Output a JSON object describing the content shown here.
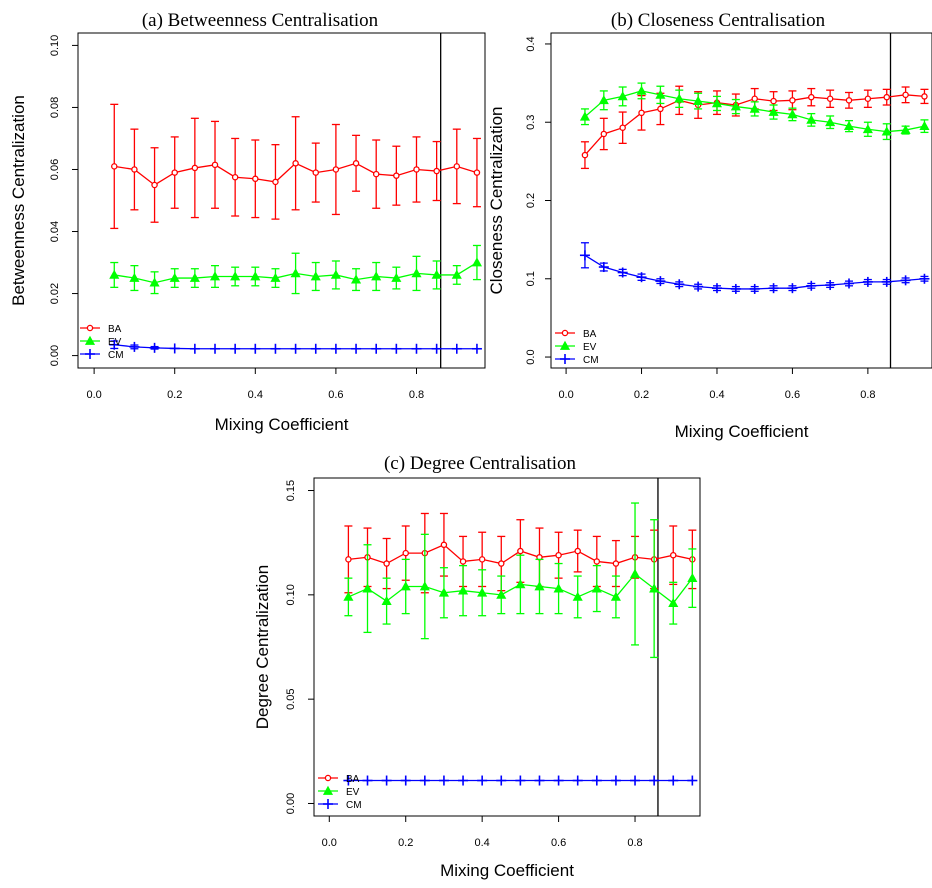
{
  "chart_data": [
    {
      "type": "line",
      "title": "(a)   Betweenness Centralisation",
      "xlabel": "Mixing Coefficient",
      "ylabel": "Betweenness Centralization",
      "xlim": [
        -0.04,
        0.97
      ],
      "ylim": [
        -0.004,
        0.104
      ],
      "xticks": [
        0.0,
        0.2,
        0.4,
        0.6,
        0.8
      ],
      "xtick_labels": [
        "0.0",
        "0.2",
        "0.4",
        "0.6",
        "0.8"
      ],
      "yticks": [
        0.0,
        0.02,
        0.04,
        0.06,
        0.08,
        0.1
      ],
      "ytick_labels": [
        "0.00",
        "0.02",
        "0.04",
        "0.06",
        "0.08",
        "0.10"
      ],
      "vline": 0.86,
      "legend_position": "bottom-left",
      "x": [
        0.05,
        0.1,
        0.15,
        0.2,
        0.25,
        0.3,
        0.35,
        0.4,
        0.45,
        0.5,
        0.55,
        0.6,
        0.65,
        0.7,
        0.75,
        0.8,
        0.85,
        0.9,
        0.95
      ],
      "series": [
        {
          "name": "BA",
          "color": "#ff0000",
          "marker": "circle",
          "values": [
            0.061,
            0.06,
            0.055,
            0.059,
            0.0605,
            0.0615,
            0.0575,
            0.057,
            0.056,
            0.062,
            0.059,
            0.06,
            0.062,
            0.0585,
            0.058,
            0.06,
            0.0595,
            0.061,
            0.059
          ],
          "errors": [
            0.02,
            0.013,
            0.012,
            0.0115,
            0.016,
            0.014,
            0.0125,
            0.0125,
            0.012,
            0.015,
            0.0095,
            0.0145,
            0.009,
            0.011,
            0.0095,
            0.0105,
            0.0095,
            0.012,
            0.011
          ]
        },
        {
          "name": "EV",
          "color": "#00ff00",
          "marker": "triangle",
          "values": [
            0.026,
            0.025,
            0.0235,
            0.025,
            0.025,
            0.0255,
            0.0255,
            0.0255,
            0.025,
            0.0265,
            0.0255,
            0.026,
            0.0245,
            0.0255,
            0.025,
            0.0265,
            0.026,
            0.026,
            0.03
          ],
          "errors": [
            0.004,
            0.004,
            0.0035,
            0.003,
            0.003,
            0.0035,
            0.003,
            0.003,
            0.003,
            0.0065,
            0.0045,
            0.0045,
            0.0035,
            0.0045,
            0.0035,
            0.0055,
            0.0045,
            0.003,
            0.0055
          ]
        },
        {
          "name": "CM",
          "color": "#0000ff",
          "marker": "plus",
          "values": [
            0.0035,
            0.0028,
            0.0025,
            0.0023,
            0.0022,
            0.0022,
            0.0022,
            0.0022,
            0.0022,
            0.0022,
            0.0022,
            0.0022,
            0.0022,
            0.0022,
            0.0022,
            0.0022,
            0.0022,
            0.0022,
            0.0022
          ],
          "errors": [
            0.0012,
            0.0006,
            0.0004,
            0.0002,
            0.0002,
            0.0002,
            0.0002,
            0.0002,
            0.0002,
            0.0002,
            0.0002,
            0.0002,
            0.0002,
            0.0002,
            0.0002,
            0.0002,
            0.0002,
            0.0002,
            0.0002
          ]
        }
      ]
    },
    {
      "type": "line",
      "title": "(b)  Closeness Centralisation",
      "xlabel": "Mixing Coefficient",
      "ylabel": "Closeness Centralization",
      "xlim": [
        -0.04,
        0.97
      ],
      "ylim": [
        -0.014,
        0.414
      ],
      "xticks": [
        0.0,
        0.2,
        0.4,
        0.6,
        0.8
      ],
      "xtick_labels": [
        "0.0",
        "0.2",
        "0.4",
        "0.6",
        "0.8"
      ],
      "yticks": [
        0.0,
        0.1,
        0.2,
        0.3,
        0.4
      ],
      "ytick_labels": [
        "0.0",
        "0.1",
        "0.2",
        "0.3",
        "0.4"
      ],
      "vline": 0.86,
      "legend_position": "bottom-left",
      "x": [
        0.05,
        0.1,
        0.15,
        0.2,
        0.25,
        0.3,
        0.35,
        0.4,
        0.45,
        0.5,
        0.55,
        0.6,
        0.65,
        0.7,
        0.75,
        0.8,
        0.85,
        0.9,
        0.95
      ],
      "series": [
        {
          "name": "BA",
          "color": "#ff0000",
          "marker": "circle",
          "values": [
            0.258,
            0.285,
            0.293,
            0.312,
            0.317,
            0.328,
            0.322,
            0.325,
            0.322,
            0.33,
            0.327,
            0.328,
            0.332,
            0.33,
            0.328,
            0.33,
            0.332,
            0.335,
            0.333
          ],
          "errors": [
            0.017,
            0.02,
            0.02,
            0.022,
            0.02,
            0.018,
            0.017,
            0.015,
            0.014,
            0.013,
            0.012,
            0.012,
            0.011,
            0.011,
            0.01,
            0.011,
            0.01,
            0.01,
            0.009
          ]
        },
        {
          "name": "EV",
          "color": "#00ff00",
          "marker": "triangle",
          "values": [
            0.307,
            0.328,
            0.333,
            0.34,
            0.335,
            0.33,
            0.327,
            0.324,
            0.32,
            0.317,
            0.313,
            0.31,
            0.303,
            0.3,
            0.295,
            0.291,
            0.288,
            0.29,
            0.295
          ],
          "errors": [
            0.01,
            0.012,
            0.012,
            0.01,
            0.011,
            0.011,
            0.01,
            0.009,
            0.009,
            0.009,
            0.009,
            0.008,
            0.008,
            0.008,
            0.007,
            0.009,
            0.01,
            0.005,
            0.008
          ]
        },
        {
          "name": "CM",
          "color": "#0000ff",
          "marker": "plus",
          "values": [
            0.13,
            0.115,
            0.108,
            0.102,
            0.097,
            0.093,
            0.09,
            0.088,
            0.087,
            0.087,
            0.088,
            0.088,
            0.091,
            0.092,
            0.094,
            0.096,
            0.096,
            0.098,
            0.1
          ],
          "errors": [
            0.016,
            0.005,
            0.004,
            0.004,
            0.003,
            0.003,
            0.003,
            0.003,
            0.003,
            0.003,
            0.003,
            0.003,
            0.003,
            0.003,
            0.003,
            0.003,
            0.003,
            0.003,
            0.003
          ]
        }
      ]
    },
    {
      "type": "line",
      "title": "(c)  Degree Centralisation",
      "xlabel": "Mixing Coefficient",
      "ylabel": "Degree Centralization",
      "xlim": [
        -0.04,
        0.97
      ],
      "ylim": [
        -0.006,
        0.156
      ],
      "xticks": [
        0.0,
        0.2,
        0.4,
        0.6,
        0.8
      ],
      "xtick_labels": [
        "0.0",
        "0.2",
        "0.4",
        "0.6",
        "0.8"
      ],
      "yticks": [
        0.0,
        0.05,
        0.1,
        0.15
      ],
      "ytick_labels": [
        "0.00",
        "0.05",
        "0.10",
        "0.15"
      ],
      "vline": 0.86,
      "legend_position": "bottom-left",
      "x": [
        0.05,
        0.1,
        0.15,
        0.2,
        0.25,
        0.3,
        0.35,
        0.4,
        0.45,
        0.5,
        0.55,
        0.6,
        0.65,
        0.7,
        0.75,
        0.8,
        0.85,
        0.9,
        0.95
      ],
      "series": [
        {
          "name": "BA",
          "color": "#ff0000",
          "marker": "circle",
          "values": [
            0.117,
            0.118,
            0.115,
            0.12,
            0.12,
            0.124,
            0.116,
            0.117,
            0.115,
            0.121,
            0.118,
            0.119,
            0.121,
            0.116,
            0.115,
            0.118,
            0.117,
            0.119,
            0.117
          ],
          "errors": [
            0.016,
            0.014,
            0.012,
            0.013,
            0.019,
            0.015,
            0.012,
            0.013,
            0.013,
            0.015,
            0.014,
            0.011,
            0.01,
            0.012,
            0.011,
            0.01,
            0.014,
            0.014,
            0.014
          ]
        },
        {
          "name": "EV",
          "color": "#00ff00",
          "marker": "triangle",
          "values": [
            0.099,
            0.103,
            0.097,
            0.104,
            0.104,
            0.101,
            0.102,
            0.101,
            0.1,
            0.105,
            0.104,
            0.103,
            0.099,
            0.103,
            0.099,
            0.11,
            0.103,
            0.096,
            0.108
          ],
          "errors": [
            0.009,
            0.021,
            0.011,
            0.013,
            0.025,
            0.012,
            0.012,
            0.011,
            0.009,
            0.014,
            0.013,
            0.012,
            0.01,
            0.011,
            0.01,
            0.034,
            0.033,
            0.01,
            0.014
          ]
        },
        {
          "name": "CM",
          "color": "#0000ff",
          "marker": "plus",
          "values": [
            0.011,
            0.011,
            0.011,
            0.011,
            0.011,
            0.011,
            0.011,
            0.011,
            0.011,
            0.011,
            0.011,
            0.011,
            0.011,
            0.011,
            0.011,
            0.011,
            0.011,
            0.011,
            0.011
          ],
          "errors": [
            0.0002,
            0.0002,
            0.0002,
            0.0002,
            0.0002,
            0.0002,
            0.0002,
            0.0002,
            0.0002,
            0.0002,
            0.0002,
            0.0002,
            0.0002,
            0.0002,
            0.0002,
            0.0002,
            0.0002,
            0.0002,
            0.0002
          ]
        }
      ]
    }
  ]
}
